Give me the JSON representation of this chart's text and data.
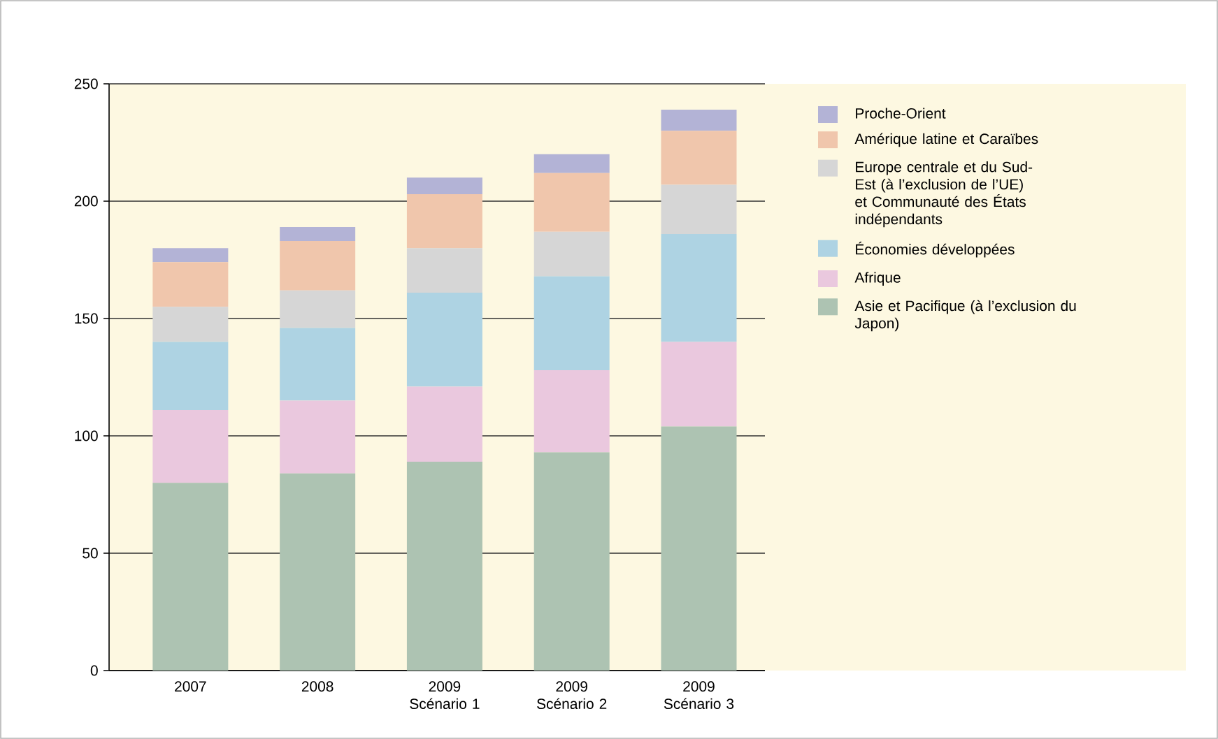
{
  "chart_data": {
    "type": "bar",
    "stacked": true,
    "categories": [
      "2007",
      "2008",
      "2009 Scénario 1",
      "2009 Scénario 2",
      "2009 Scénario 3"
    ],
    "series": [
      {
        "name": "Asie et Pacifique (à l’exclusion du Japon)",
        "color": "#adc3b2",
        "values": [
          80,
          84,
          89,
          93,
          104
        ]
      },
      {
        "name": "Afrique",
        "color": "#eac8de",
        "values": [
          31,
          31,
          32,
          35,
          36
        ]
      },
      {
        "name": "Économies développées",
        "color": "#aed3e3",
        "values": [
          29,
          31,
          40,
          40,
          46
        ]
      },
      {
        "name": "Europe centrale et du Sud-Est (à l’exclusion de l’UE) et Communauté des États indépendants",
        "color": "#d6d6d6",
        "values": [
          15,
          16,
          19,
          19,
          21
        ]
      },
      {
        "name": "Amérique latine et Caraïbes",
        "color": "#f0c6ac",
        "values": [
          19,
          21,
          23,
          25,
          23
        ]
      },
      {
        "name": "Proche-Orient",
        "color": "#b3b3d6",
        "values": [
          6,
          6,
          7,
          8,
          9
        ]
      }
    ],
    "ylim": [
      0,
      250
    ],
    "yticks": [
      0,
      50,
      100,
      150,
      200,
      250
    ],
    "grid": "y",
    "legend": "right"
  }
}
